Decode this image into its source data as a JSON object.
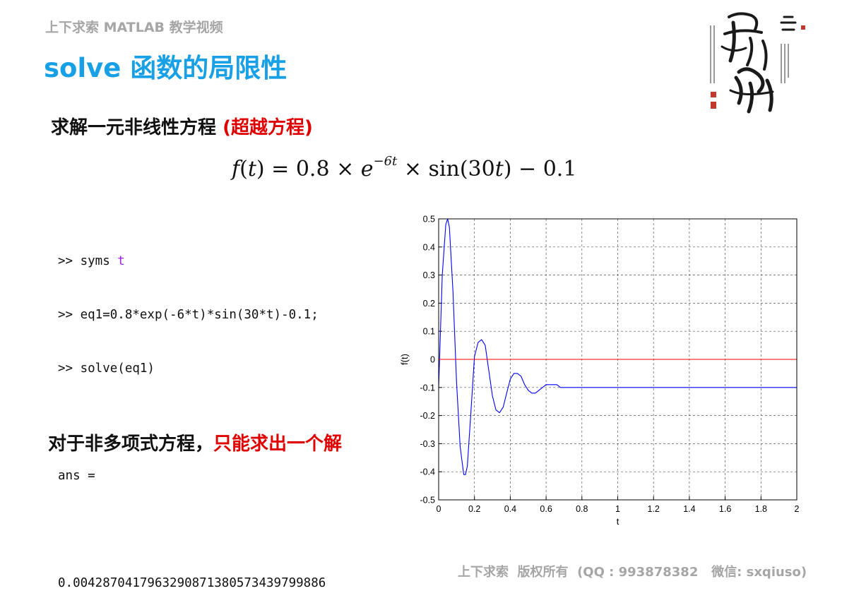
{
  "header": {
    "series_title": "上下求索 MATLAB 教学视频",
    "slide_title": "solve 函数的局限性"
  },
  "heading": {
    "text": "求解一元非线性方程 ",
    "highlight": "(超越方程)"
  },
  "formula": {
    "f": "f",
    "lparen1": "(",
    "t1": "t",
    "rparen1": ")",
    "eq_coef": " = 0.8 × ",
    "e": "e",
    "exponent": "−6t",
    "times_sin": " × sin",
    "lparen2": "(",
    "thirty": "30",
    "t2": "t",
    "rparen2": ")",
    "tail": " − 0.1"
  },
  "code": {
    "line1_prefix": ">> syms ",
    "line1_var": "t",
    "line2": ">> eq1=0.8*exp(-6*t)*sin(30*t)-0.1;",
    "line3": ">> solve(eq1)",
    "line4": "",
    "line5": "ans =",
    "line6": "",
    "line7": "0.0042870417963290871380573439799886"
  },
  "conclusion": {
    "text": "对于非多项式方程，",
    "highlight": "只能求出一个解"
  },
  "footer": {
    "text": "上下求索  版权所有  (QQ : 993878382   微信: sxqiuso)"
  },
  "colors": {
    "title_blue": "#18a0e6",
    "highlight_red": "#e00000",
    "series_blue": "#0000ff",
    "zero_line_red": "#ff0000",
    "gray_text": "#a6a6a6"
  },
  "chart_data": {
    "type": "line",
    "xlabel": "t",
    "ylabel": "f(t)",
    "xlim": [
      0,
      2
    ],
    "ylim": [
      -0.5,
      0.5
    ],
    "xticks": [
      "0",
      "0.2",
      "0.4",
      "0.6",
      "0.8",
      "1",
      "1.2",
      "1.4",
      "1.6",
      "1.8",
      "2"
    ],
    "yticks": [
      "-0.5",
      "-0.4",
      "-0.3",
      "-0.2",
      "-0.1",
      "0",
      "0.1",
      "0.2",
      "0.3",
      "0.4",
      "0.5"
    ],
    "grid": true,
    "series": [
      {
        "color": "#0000ff",
        "x": [
          0,
          0.02,
          0.04,
          0.05,
          0.06,
          0.08,
          0.1,
          0.12,
          0.14,
          0.15,
          0.16,
          0.18,
          0.2,
          0.22,
          0.24,
          0.25,
          0.26,
          0.28,
          0.3,
          0.32,
          0.34,
          0.36,
          0.38,
          0.4,
          0.42,
          0.44,
          0.46,
          0.48,
          0.5,
          0.52,
          0.54,
          0.56,
          0.58,
          0.6,
          0.62,
          0.64,
          0.66,
          0.68,
          0.7,
          0.72,
          0.74,
          0.76,
          0.78,
          0.8,
          0.85,
          0.9,
          0.95,
          1.0,
          1.1,
          1.2,
          1.4,
          1.6,
          1.8,
          2.0
        ],
        "y": [
          -0.1,
          0.3,
          0.48,
          0.5,
          0.47,
          0.24,
          -0.08,
          -0.31,
          -0.41,
          -0.41,
          -0.38,
          -0.19,
          0.01,
          0.06,
          0.07,
          0.06,
          0.05,
          -0.04,
          -0.13,
          -0.18,
          -0.19,
          -0.17,
          -0.12,
          -0.07,
          -0.05,
          -0.05,
          -0.06,
          -0.09,
          -0.11,
          -0.12,
          -0.12,
          -0.11,
          -0.1,
          -0.09,
          -0.09,
          -0.09,
          -0.09,
          -0.1,
          -0.1,
          -0.1,
          -0.1,
          -0.1,
          -0.1,
          -0.1,
          -0.1,
          -0.1,
          -0.1,
          -0.1,
          -0.1,
          -0.1,
          -0.1,
          -0.1,
          -0.1,
          -0.1
        ]
      },
      {
        "color": "#ff0000",
        "x": [
          0,
          2
        ],
        "y": [
          0,
          0
        ]
      }
    ]
  }
}
